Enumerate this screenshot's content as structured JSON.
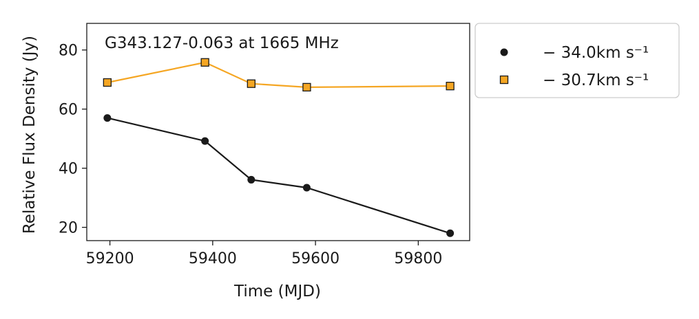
{
  "chart_data": {
    "type": "line",
    "annotation": "G343.127-0.063 at 1665 MHz",
    "xlabel": "Time (MJD)",
    "ylabel": "Relative Flux Density (Jy)",
    "xlim": [
      59155,
      59900
    ],
    "ylim": [
      15.5,
      89
    ],
    "xticks": [
      59200,
      59400,
      59600,
      59800
    ],
    "yticks": [
      20,
      40,
      60,
      80
    ],
    "grid": false,
    "legend_position": "outside-right",
    "series": [
      {
        "name": "− 34.0km s⁻¹",
        "color": "#1a1a1a",
        "marker": "circle",
        "x": [
          59195,
          59385,
          59475,
          59583,
          59862
        ],
        "y": [
          57,
          49.2,
          36.1,
          33.4,
          18
        ]
      },
      {
        "name": "− 30.7km s⁻¹",
        "color": "#f5a623",
        "marker": "square",
        "x": [
          59195,
          59385,
          59475,
          59583,
          59862
        ],
        "y": [
          69,
          75.8,
          68.6,
          67.4,
          67.8
        ]
      }
    ]
  }
}
